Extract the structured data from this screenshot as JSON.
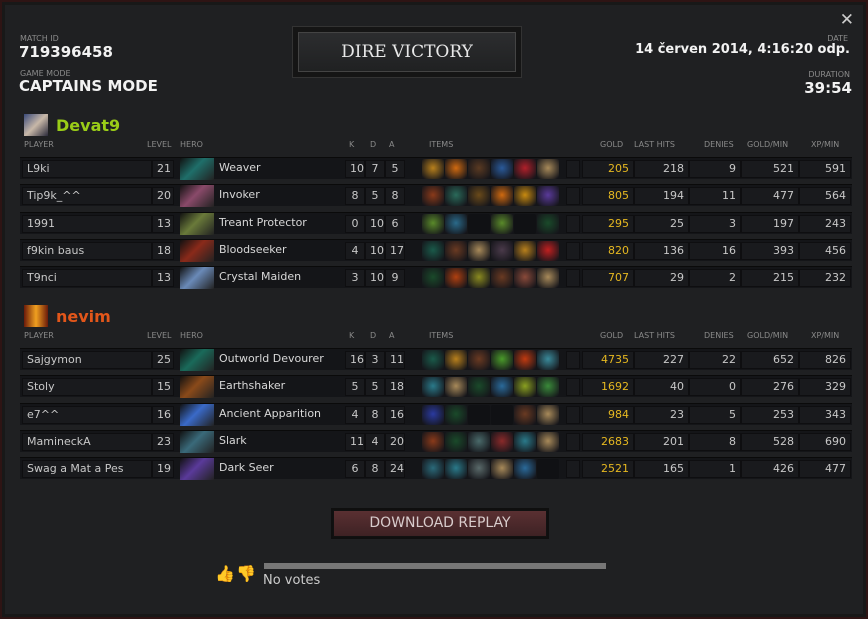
{
  "header": {
    "match_id_label": "MATCH ID",
    "match_id": "719396458",
    "game_mode_label": "GAME MODE",
    "game_mode": "CAPTAINS MODE",
    "result": "DIRE VICTORY",
    "date_label": "DATE",
    "date": "14 červen 2014, 4:16:20 odp.",
    "duration_label": "DURATION",
    "duration": "39:54",
    "close": "✕"
  },
  "columns": {
    "player": "PLAYER",
    "level": "LEVEL",
    "hero": "HERO",
    "k": "K",
    "d": "D",
    "a": "A",
    "items": "ITEMS",
    "gold": "GOLD",
    "last_hits": "LAST HITS",
    "denies": "DENIES",
    "gpm": "GOLD/MIN",
    "xpm": "XP/MIN"
  },
  "teams": [
    {
      "name": "Devat9",
      "color": "#9acd18",
      "players": [
        {
          "player": "L9ki",
          "level": "21",
          "hero": "Weaver",
          "hero_color": "#1f6f6a",
          "k": "10",
          "d": "7",
          "a": "5",
          "items": [
            "#b8801c",
            "#d06a10",
            "#5a3a22",
            "#2a5a9a",
            "#b0202a",
            "#a88a5a"
          ],
          "gold": "205",
          "last_hits": "218",
          "denies": "9",
          "gpm": "521",
          "xpm": "591"
        },
        {
          "player": "Tip9k_^^",
          "level": "20",
          "hero": "Invoker",
          "hero_color": "#8a4a6a",
          "k": "8",
          "d": "5",
          "a": "8",
          "items": [
            "#8a3a1a",
            "#2a6a5a",
            "#6a4a1a",
            "#d06a10",
            "#c88a10",
            "#5a3a9a"
          ],
          "gold": "805",
          "last_hits": "194",
          "denies": "11",
          "gpm": "477",
          "xpm": "564"
        },
        {
          "player": "1991",
          "level": "13",
          "hero": "Treant Protector",
          "hero_color": "#6a7a3a",
          "k": "0",
          "d": "10",
          "a": "6",
          "items": [
            "#5a8a2a",
            "#2a6a8a",
            "",
            "#5a8a2a",
            "",
            "#1a4a2a"
          ],
          "gold": "295",
          "last_hits": "25",
          "denies": "3",
          "gpm": "197",
          "xpm": "243"
        },
        {
          "player": "f9kin baus",
          "level": "18",
          "hero": "Bloodseeker",
          "hero_color": "#8a2a1a",
          "k": "4",
          "d": "10",
          "a": "17",
          "items": [
            "#1a5a4a",
            "#6a3a22",
            "#a88a5a",
            "#4a3a4a",
            "#b8801c",
            "#c02020"
          ],
          "gold": "820",
          "last_hits": "136",
          "denies": "16",
          "gpm": "393",
          "xpm": "456"
        },
        {
          "player": "T9nci",
          "level": "13",
          "hero": "Crystal Maiden",
          "hero_color": "#6a8ab8",
          "k": "3",
          "d": "10",
          "a": "9",
          "items": [
            "#1a4a2a",
            "#b04010",
            "#8a8a20",
            "#6a3a22",
            "#8a4a3a",
            "#a88a5a"
          ],
          "gold": "707",
          "last_hits": "29",
          "denies": "2",
          "gpm": "215",
          "xpm": "232"
        }
      ]
    },
    {
      "name": "nevim",
      "color": "#e2561a",
      "players": [
        {
          "player": "Sajgymon",
          "level": "25",
          "hero": "Outworld Devourer",
          "hero_color": "#1a6a5a",
          "k": "16",
          "d": "3",
          "a": "11",
          "items": [
            "#1a5a4a",
            "#b8801c",
            "#6a3a22",
            "#4a9a2a",
            "#c03a10",
            "#3a8a9a"
          ],
          "gold": "4735",
          "last_hits": "227",
          "denies": "22",
          "gpm": "652",
          "xpm": "826"
        },
        {
          "player": "Stoly",
          "level": "15",
          "hero": "Earthshaker",
          "hero_color": "#8a4a1a",
          "k": "5",
          "d": "5",
          "a": "18",
          "items": [
            "#2a7a8a",
            "#a88a5a",
            "#1a4a2a",
            "#2a6a9a",
            "#8aa020",
            "#3a8a3a"
          ],
          "gold": "1692",
          "last_hits": "40",
          "denies": "0",
          "gpm": "276",
          "xpm": "329"
        },
        {
          "player": "e7^^",
          "level": "16",
          "hero": "Ancient Apparition",
          "hero_color": "#3a6ac8",
          "k": "4",
          "d": "8",
          "a": "16",
          "items": [
            "#2a3aa0",
            "#1a4a2a",
            "",
            "",
            "#6a3a22",
            "#a88a5a"
          ],
          "gold": "984",
          "last_hits": "23",
          "denies": "5",
          "gpm": "253",
          "xpm": "343"
        },
        {
          "player": "MamineckA",
          "level": "23",
          "hero": "Slark",
          "hero_color": "#3a6a7a",
          "k": "11",
          "d": "4",
          "a": "20",
          "items": [
            "#8a3a1a",
            "#1a4a2a",
            "#4a6a6a",
            "#8a2a2a",
            "#2a7a8a",
            "#a88a5a"
          ],
          "gold": "2683",
          "last_hits": "201",
          "denies": "8",
          "gpm": "528",
          "xpm": "690"
        },
        {
          "player": "Swag a Mat a Pes",
          "level": "19",
          "hero": "Dark Seer",
          "hero_color": "#5a3a9a",
          "k": "6",
          "d": "8",
          "a": "24",
          "items": [
            "#2a6a7a",
            "#2a7a8a",
            "#5a6a6a",
            "#a88a5a",
            "#2a6a9a",
            ""
          ],
          "gold": "2521",
          "last_hits": "165",
          "denies": "1",
          "gpm": "426",
          "xpm": "477"
        }
      ]
    }
  ],
  "footer": {
    "download_replay": "DOWNLOAD REPLAY",
    "votes": "No votes",
    "vote_fraction": 0
  }
}
